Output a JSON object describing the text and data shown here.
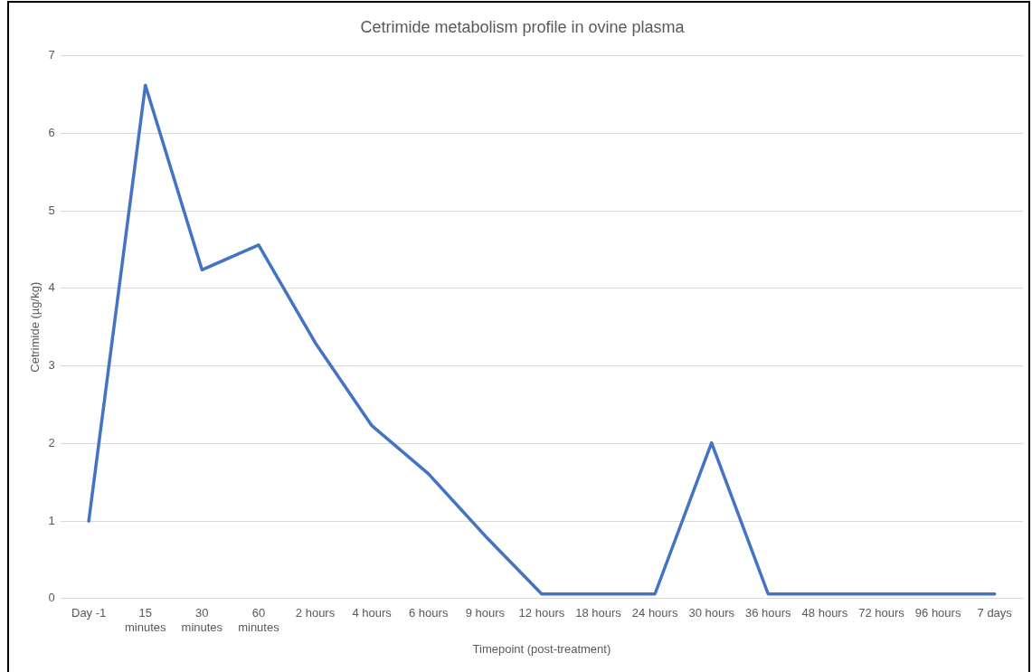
{
  "chart_data": {
    "type": "line",
    "title": "Cetrimide metabolism profile in ovine plasma",
    "xlabel": "Timepoint (post-treatment)",
    "ylabel": "Cetrimide (µg/kg)",
    "categories": [
      "Day -1",
      "15 minutes",
      "30 minutes",
      "60 minutes",
      "2 hours",
      "4 hours",
      "6 hours",
      "9 hours",
      "12 hours",
      "18 hours",
      "24 hours",
      "30 hours",
      "36 hours",
      "48 hours",
      "72 hours",
      "96 hours",
      "7 days"
    ],
    "values": [
      1.0,
      6.62,
      4.24,
      4.56,
      3.3,
      2.23,
      1.61,
      0.81,
      0.06,
      0.06,
      0.06,
      2.01,
      0.06,
      0.06,
      0.06,
      0.06,
      0.06
    ],
    "color": "#4472c4",
    "ylim": [
      0,
      7
    ],
    "yticks": [
      0,
      1,
      2,
      3,
      4,
      5,
      6,
      7
    ],
    "grid": "y",
    "marker": "none",
    "line_style": "solid"
  }
}
